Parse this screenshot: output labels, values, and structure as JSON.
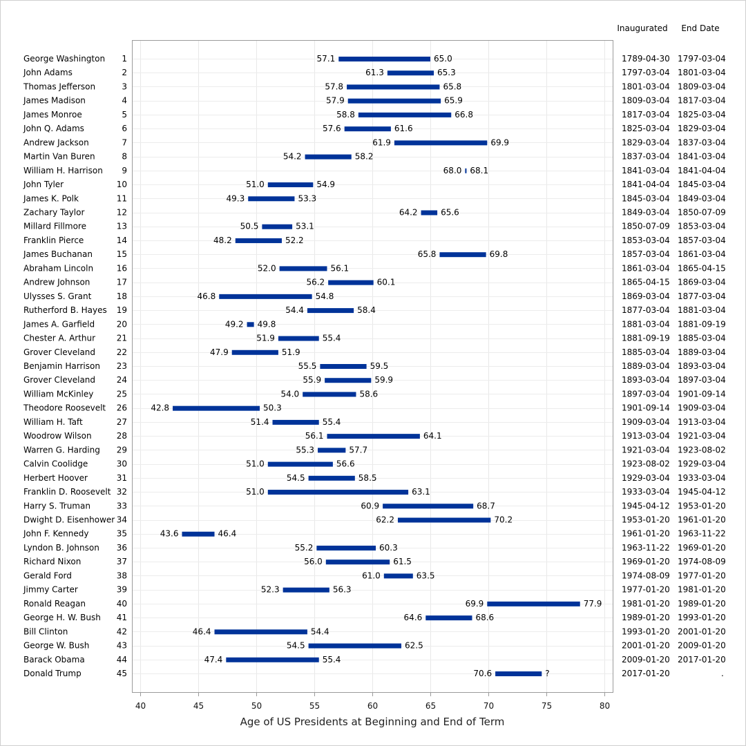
{
  "chart_data": {
    "type": "bar",
    "subtype": "floating-range-bar",
    "title": "",
    "xlabel": "Age of US Presidents at Beginning and End of Term",
    "ylabel": "",
    "xlim": [
      40,
      80
    ],
    "xticks": [
      40,
      45,
      50,
      55,
      60,
      65,
      70,
      75,
      80
    ],
    "grid": true,
    "bar_color": "#003399",
    "columns": {
      "inaugurated": "Inaugurated",
      "end_date": "End Date"
    },
    "rows": [
      {
        "name": "George Washington",
        "num": "1",
        "start": 57.1,
        "end": 65.0,
        "start_label": "57.1",
        "end_label": "65.0",
        "inaugurated": "1789-04-30",
        "end_date": "1797-03-04"
      },
      {
        "name": "John Adams",
        "num": "2",
        "start": 61.3,
        "end": 65.3,
        "start_label": "61.3",
        "end_label": "65.3",
        "inaugurated": "1797-03-04",
        "end_date": "1801-03-04"
      },
      {
        "name": "Thomas Jefferson",
        "num": "3",
        "start": 57.8,
        "end": 65.8,
        "start_label": "57.8",
        "end_label": "65.8",
        "inaugurated": "1801-03-04",
        "end_date": "1809-03-04"
      },
      {
        "name": "James Madison",
        "num": "4",
        "start": 57.9,
        "end": 65.9,
        "start_label": "57.9",
        "end_label": "65.9",
        "inaugurated": "1809-03-04",
        "end_date": "1817-03-04"
      },
      {
        "name": "James Monroe",
        "num": "5",
        "start": 58.8,
        "end": 66.8,
        "start_label": "58.8",
        "end_label": "66.8",
        "inaugurated": "1817-03-04",
        "end_date": "1825-03-04"
      },
      {
        "name": "John Q. Adams",
        "num": "6",
        "start": 57.6,
        "end": 61.6,
        "start_label": "57.6",
        "end_label": "61.6",
        "inaugurated": "1825-03-04",
        "end_date": "1829-03-04"
      },
      {
        "name": "Andrew Jackson",
        "num": "7",
        "start": 61.9,
        "end": 69.9,
        "start_label": "61.9",
        "end_label": "69.9",
        "inaugurated": "1829-03-04",
        "end_date": "1837-03-04"
      },
      {
        "name": "Martin Van Buren",
        "num": "8",
        "start": 54.2,
        "end": 58.2,
        "start_label": "54.2",
        "end_label": "58.2",
        "inaugurated": "1837-03-04",
        "end_date": "1841-03-04"
      },
      {
        "name": "William H. Harrison",
        "num": "9",
        "start": 68.0,
        "end": 68.1,
        "start_label": "68.0",
        "end_label": "68.1",
        "inaugurated": "1841-03-04",
        "end_date": "1841-04-04"
      },
      {
        "name": "John Tyler",
        "num": "10",
        "start": 51.0,
        "end": 54.9,
        "start_label": "51.0",
        "end_label": "54.9",
        "inaugurated": "1841-04-04",
        "end_date": "1845-03-04"
      },
      {
        "name": "James K. Polk",
        "num": "11",
        "start": 49.3,
        "end": 53.3,
        "start_label": "49.3",
        "end_label": "53.3",
        "inaugurated": "1845-03-04",
        "end_date": "1849-03-04"
      },
      {
        "name": "Zachary Taylor",
        "num": "12",
        "start": 64.2,
        "end": 65.6,
        "start_label": "64.2",
        "end_label": "65.6",
        "inaugurated": "1849-03-04",
        "end_date": "1850-07-09"
      },
      {
        "name": "Millard Fillmore",
        "num": "13",
        "start": 50.5,
        "end": 53.1,
        "start_label": "50.5",
        "end_label": "53.1",
        "inaugurated": "1850-07-09",
        "end_date": "1853-03-04"
      },
      {
        "name": "Franklin Pierce",
        "num": "14",
        "start": 48.2,
        "end": 52.2,
        "start_label": "48.2",
        "end_label": "52.2",
        "inaugurated": "1853-03-04",
        "end_date": "1857-03-04"
      },
      {
        "name": "James Buchanan",
        "num": "15",
        "start": 65.8,
        "end": 69.8,
        "start_label": "65.8",
        "end_label": "69.8",
        "inaugurated": "1857-03-04",
        "end_date": "1861-03-04"
      },
      {
        "name": "Abraham Lincoln",
        "num": "16",
        "start": 52.0,
        "end": 56.1,
        "start_label": "52.0",
        "end_label": "56.1",
        "inaugurated": "1861-03-04",
        "end_date": "1865-04-15"
      },
      {
        "name": "Andrew Johnson",
        "num": "17",
        "start": 56.2,
        "end": 60.1,
        "start_label": "56.2",
        "end_label": "60.1",
        "inaugurated": "1865-04-15",
        "end_date": "1869-03-04"
      },
      {
        "name": "Ulysses S. Grant",
        "num": "18",
        "start": 46.8,
        "end": 54.8,
        "start_label": "46.8",
        "end_label": "54.8",
        "inaugurated": "1869-03-04",
        "end_date": "1877-03-04"
      },
      {
        "name": "Rutherford B. Hayes",
        "num": "19",
        "start": 54.4,
        "end": 58.4,
        "start_label": "54.4",
        "end_label": "58.4",
        "inaugurated": "1877-03-04",
        "end_date": "1881-03-04"
      },
      {
        "name": "James A. Garfield",
        "num": "20",
        "start": 49.2,
        "end": 49.8,
        "start_label": "49.2",
        "end_label": "49.8",
        "inaugurated": "1881-03-04",
        "end_date": "1881-09-19"
      },
      {
        "name": "Chester A. Arthur",
        "num": "21",
        "start": 51.9,
        "end": 55.4,
        "start_label": "51.9",
        "end_label": "55.4",
        "inaugurated": "1881-09-19",
        "end_date": "1885-03-04"
      },
      {
        "name": "Grover Cleveland",
        "num": "22",
        "start": 47.9,
        "end": 51.9,
        "start_label": "47.9",
        "end_label": "51.9",
        "inaugurated": "1885-03-04",
        "end_date": "1889-03-04"
      },
      {
        "name": "Benjamin Harrison",
        "num": "23",
        "start": 55.5,
        "end": 59.5,
        "start_label": "55.5",
        "end_label": "59.5",
        "inaugurated": "1889-03-04",
        "end_date": "1893-03-04"
      },
      {
        "name": "Grover Cleveland",
        "num": "24",
        "start": 55.9,
        "end": 59.9,
        "start_label": "55.9",
        "end_label": "59.9",
        "inaugurated": "1893-03-04",
        "end_date": "1897-03-04"
      },
      {
        "name": "William McKinley",
        "num": "25",
        "start": 54.0,
        "end": 58.6,
        "start_label": "54.0",
        "end_label": "58.6",
        "inaugurated": "1897-03-04",
        "end_date": "1901-09-14"
      },
      {
        "name": "Theodore Roosevelt",
        "num": "26",
        "start": 42.8,
        "end": 50.3,
        "start_label": "42.8",
        "end_label": "50.3",
        "inaugurated": "1901-09-14",
        "end_date": "1909-03-04"
      },
      {
        "name": "William H. Taft",
        "num": "27",
        "start": 51.4,
        "end": 55.4,
        "start_label": "51.4",
        "end_label": "55.4",
        "inaugurated": "1909-03-04",
        "end_date": "1913-03-04"
      },
      {
        "name": "Woodrow Wilson",
        "num": "28",
        "start": 56.1,
        "end": 64.1,
        "start_label": "56.1",
        "end_label": "64.1",
        "inaugurated": "1913-03-04",
        "end_date": "1921-03-04"
      },
      {
        "name": "Warren G. Harding",
        "num": "29",
        "start": 55.3,
        "end": 57.7,
        "start_label": "55.3",
        "end_label": "57.7",
        "inaugurated": "1921-03-04",
        "end_date": "1923-08-02"
      },
      {
        "name": "Calvin Coolidge",
        "num": "30",
        "start": 51.0,
        "end": 56.6,
        "start_label": "51.0",
        "end_label": "56.6",
        "inaugurated": "1923-08-02",
        "end_date": "1929-03-04"
      },
      {
        "name": "Herbert Hoover",
        "num": "31",
        "start": 54.5,
        "end": 58.5,
        "start_label": "54.5",
        "end_label": "58.5",
        "inaugurated": "1929-03-04",
        "end_date": "1933-03-04"
      },
      {
        "name": "Franklin D. Roosevelt",
        "num": "32",
        "start": 51.0,
        "end": 63.1,
        "start_label": "51.0",
        "end_label": "63.1",
        "inaugurated": "1933-03-04",
        "end_date": "1945-04-12"
      },
      {
        "name": "Harry S. Truman",
        "num": "33",
        "start": 60.9,
        "end": 68.7,
        "start_label": "60.9",
        "end_label": "68.7",
        "inaugurated": "1945-04-12",
        "end_date": "1953-01-20"
      },
      {
        "name": "Dwight D. Eisenhower",
        "num": "34",
        "start": 62.2,
        "end": 70.2,
        "start_label": "62.2",
        "end_label": "70.2",
        "inaugurated": "1953-01-20",
        "end_date": "1961-01-20"
      },
      {
        "name": "John F. Kennedy",
        "num": "35",
        "start": 43.6,
        "end": 46.4,
        "start_label": "43.6",
        "end_label": "46.4",
        "inaugurated": "1961-01-20",
        "end_date": "1963-11-22"
      },
      {
        "name": "Lyndon B. Johnson",
        "num": "36",
        "start": 55.2,
        "end": 60.3,
        "start_label": "55.2",
        "end_label": "60.3",
        "inaugurated": "1963-11-22",
        "end_date": "1969-01-20"
      },
      {
        "name": "Richard Nixon",
        "num": "37",
        "start": 56.0,
        "end": 61.5,
        "start_label": "56.0",
        "end_label": "61.5",
        "inaugurated": "1969-01-20",
        "end_date": "1974-08-09"
      },
      {
        "name": "Gerald Ford",
        "num": "38",
        "start": 61.0,
        "end": 63.5,
        "start_label": "61.0",
        "end_label": "63.5",
        "inaugurated": "1974-08-09",
        "end_date": "1977-01-20"
      },
      {
        "name": "Jimmy Carter",
        "num": "39",
        "start": 52.3,
        "end": 56.3,
        "start_label": "52.3",
        "end_label": "56.3",
        "inaugurated": "1977-01-20",
        "end_date": "1981-01-20"
      },
      {
        "name": "Ronald Reagan",
        "num": "40",
        "start": 69.9,
        "end": 77.9,
        "start_label": "69.9",
        "end_label": "77.9",
        "inaugurated": "1981-01-20",
        "end_date": "1989-01-20"
      },
      {
        "name": "George H. W. Bush",
        "num": "41",
        "start": 64.6,
        "end": 68.6,
        "start_label": "64.6",
        "end_label": "68.6",
        "inaugurated": "1989-01-20",
        "end_date": "1993-01-20"
      },
      {
        "name": "Bill Clinton",
        "num": "42",
        "start": 46.4,
        "end": 54.4,
        "start_label": "46.4",
        "end_label": "54.4",
        "inaugurated": "1993-01-20",
        "end_date": "2001-01-20"
      },
      {
        "name": "George W. Bush",
        "num": "43",
        "start": 54.5,
        "end": 62.5,
        "start_label": "54.5",
        "end_label": "62.5",
        "inaugurated": "2001-01-20",
        "end_date": "2009-01-20"
      },
      {
        "name": "Barack Obama",
        "num": "44",
        "start": 47.4,
        "end": 55.4,
        "start_label": "47.4",
        "end_label": "55.4",
        "inaugurated": "2009-01-20",
        "end_date": "2017-01-20"
      },
      {
        "name": "Donald Trump",
        "num": "45",
        "start": 70.6,
        "end": 74.6,
        "start_label": "70.6",
        "end_label": "?",
        "inaugurated": "2017-01-20",
        "end_date": "."
      }
    ]
  }
}
